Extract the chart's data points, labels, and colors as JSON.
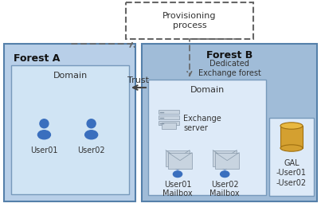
{
  "bg_color": "#ffffff",
  "forest_a_color": "#b8cfe8",
  "forest_b_color": "#a0bcd8",
  "domain_a_color": "#d0e4f4",
  "domain_b_color": "#ddeaf8",
  "gal_box_color": "#ddeaf8",
  "prov_box_color": "#ffffff",
  "user_color": "#3a6fbe",
  "gal_cylinder_color": "#d4a030",
  "gal_cylinder_top": "#e8b840",
  "forest_a_label": "Forest A",
  "forest_b_label": "Forest B",
  "forest_b_sub": "Dedicated\nExchange forest",
  "domain_label": "Domain",
  "trust_label": "Trust",
  "prov_label": "Provisioning\nprocess",
  "exchange_label": "Exchange\nserver",
  "user01_label": "User01",
  "user02_label": "User02",
  "mailbox01_label": "User01\nMailbox",
  "mailbox02_label": "User02\nMailbox",
  "gal_label": "GAL\n-User01\n-User02",
  "edge_color": "#5580aa",
  "domain_edge": "#7799bb",
  "arrow_color": "#444444",
  "dashed_color": "#666666"
}
